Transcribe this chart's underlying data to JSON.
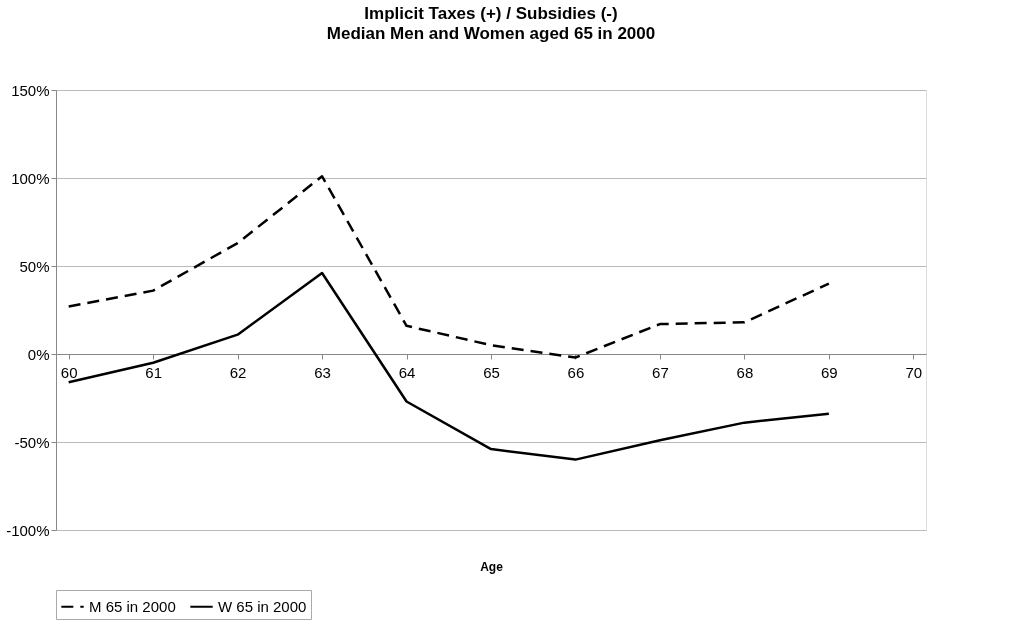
{
  "chart_data": {
    "type": "line",
    "title": "Implicit Taxes (+) / Subsidies (-)",
    "subtitle": "Median Men and Women aged 65 in 2000",
    "xlabel": "Age",
    "categories": [
      "60",
      "61",
      "62",
      "63",
      "64",
      "65",
      "66",
      "67",
      "68",
      "69",
      "70"
    ],
    "series": [
      {
        "name": "M 65 in 2000",
        "color": "#000000",
        "line_style": "dashed",
        "values": [
          27,
          36,
          63,
          101,
          16,
          5,
          -2,
          17,
          18,
          40,
          null
        ]
      },
      {
        "name": "W 65 in 2000",
        "color": "#000000",
        "line_style": "solid",
        "values": [
          -16,
          -5,
          11,
          46,
          -27,
          -54,
          -60,
          -49,
          -39,
          -34,
          null
        ]
      }
    ],
    "ylim": [
      -100,
      150
    ],
    "yticks": [
      {
        "value": -100,
        "label": "-100%"
      },
      {
        "value": -50,
        "label": "-50%"
      },
      {
        "value": 0,
        "label": "0%"
      },
      {
        "value": 50,
        "label": "50%"
      },
      {
        "value": 100,
        "label": "100%"
      },
      {
        "value": 150,
        "label": "150%"
      }
    ],
    "grid": "y",
    "legend": "bottom",
    "marker": "none"
  }
}
